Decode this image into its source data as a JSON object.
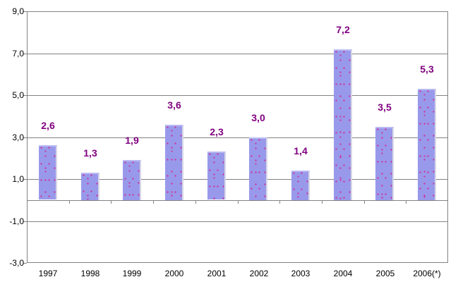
{
  "chart_data": {
    "type": "bar",
    "title": "",
    "xlabel": "",
    "ylabel": "",
    "categories": [
      "1997",
      "1998",
      "1999",
      "2000",
      "2001",
      "2002",
      "2003",
      "2004",
      "2005",
      "2006(*)"
    ],
    "values": [
      2.6,
      1.3,
      1.9,
      3.6,
      2.3,
      3.0,
      1.4,
      7.2,
      3.5,
      5.3
    ],
    "value_labels": [
      "2,6",
      "1,3",
      "1,9",
      "3,6",
      "2,3",
      "3,0",
      "1,4",
      "7,2",
      "3,5",
      "5,3"
    ],
    "ylim": [
      -3.0,
      9.0
    ],
    "y_ticks": [
      9.0,
      7.0,
      5.0,
      3.0,
      1.0,
      -1.0,
      -3.0
    ],
    "y_tick_labels": [
      "9,0",
      "7,0",
      "5,0",
      "3,0",
      "1,0",
      "-1,0",
      "-3,0"
    ],
    "grid": true,
    "legend": "none",
    "decimal_separator": ",",
    "colors": {
      "background": "#FFFFFF",
      "bar_fill": "#9999EB",
      "bar_dots": "#CC3399",
      "data_label": "#800080",
      "grid_line": "#848284",
      "axis_text": "#000000"
    }
  }
}
